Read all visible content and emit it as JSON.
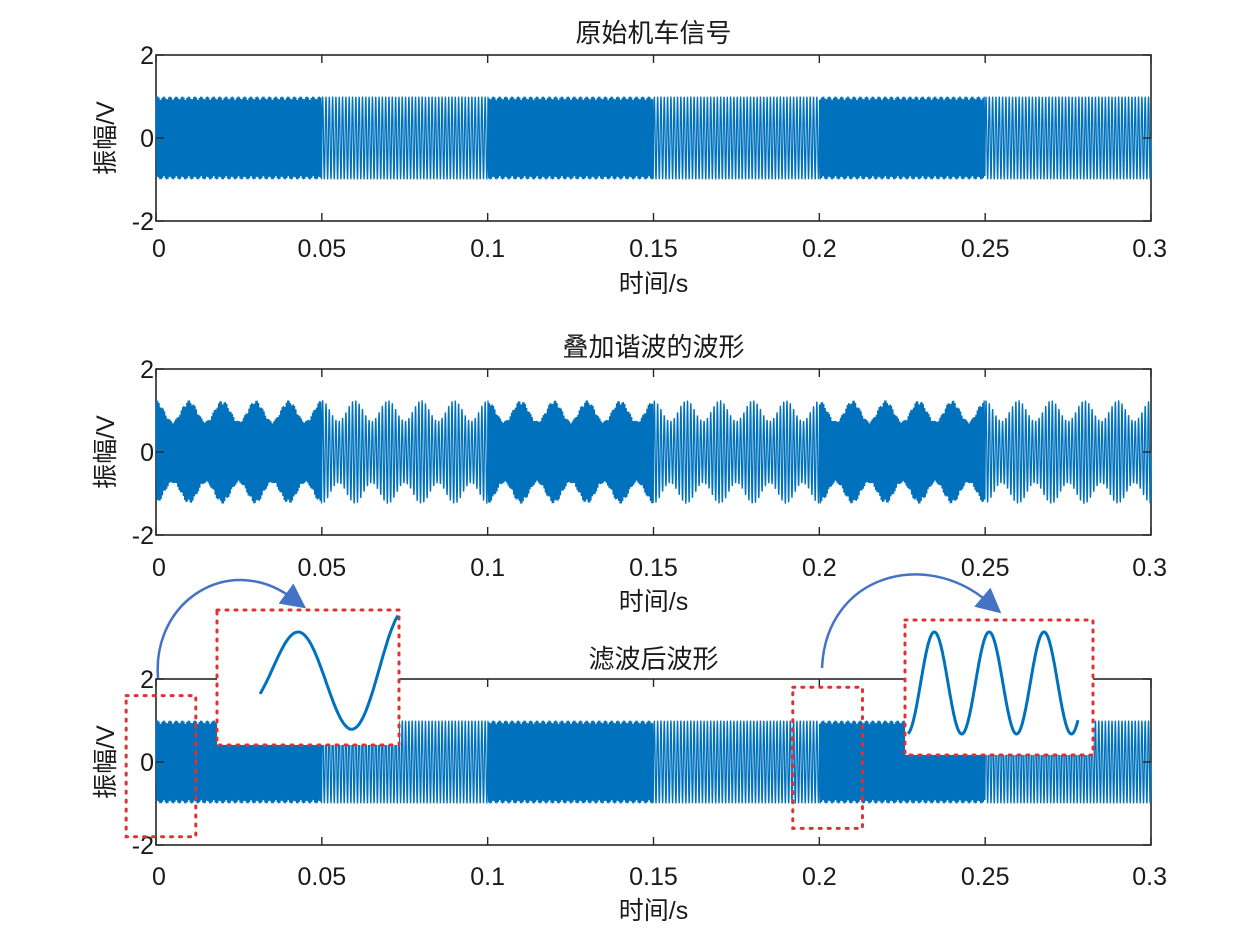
{
  "colors": {
    "signal": "#0072BD",
    "zoom_box": "#e03030",
    "arrow": "#4472C4",
    "axis": "#262626"
  },
  "chart_data": [
    {
      "type": "line",
      "title": "原始机车信号",
      "xlabel": "时间/s",
      "ylabel": "振幅/V",
      "xlim": [
        0,
        0.3
      ],
      "ylim": [
        -2,
        2
      ],
      "xticks": [
        "0",
        "0.05",
        "0.1",
        "0.15",
        "0.2",
        "0.25",
        "0.3"
      ],
      "yticks": [
        "-2",
        "0",
        "2"
      ],
      "grid": false,
      "series": [
        {
          "kind": "fsk",
          "amplitude": 1.0,
          "segments": [
            {
              "x": [
                0,
                0.05
              ],
              "freq_hz": 2400
            },
            {
              "x": [
                0.05,
                0.1
              ],
              "freq_hz": 1000
            },
            {
              "x": [
                0.1,
                0.15
              ],
              "freq_hz": 2400
            },
            {
              "x": [
                0.15,
                0.2
              ],
              "freq_hz": 1000
            },
            {
              "x": [
                0.2,
                0.25
              ],
              "freq_hz": 2400
            },
            {
              "x": [
                0.25,
                0.3
              ],
              "freq_hz": 1000
            }
          ]
        }
      ]
    },
    {
      "type": "line",
      "title": "叠加谐波的波形",
      "xlabel": "时间/s",
      "ylabel": "振幅/V",
      "xlim": [
        0,
        0.3
      ],
      "ylim": [
        -2,
        2
      ],
      "xticks": [
        "0",
        "0.05",
        "0.1",
        "0.15",
        "0.2",
        "0.25",
        "0.3"
      ],
      "yticks": [
        "-2",
        "0",
        "2"
      ],
      "grid": false,
      "series": [
        {
          "kind": "fsk_with_harmonic",
          "amplitude": 1.0,
          "harmonic_amplitude": 0.25,
          "segments": [
            {
              "x": [
                0,
                0.05
              ],
              "freq_hz": 2400
            },
            {
              "x": [
                0.05,
                0.1
              ],
              "freq_hz": 1000
            },
            {
              "x": [
                0.1,
                0.15
              ],
              "freq_hz": 2400
            },
            {
              "x": [
                0.15,
                0.2
              ],
              "freq_hz": 1000
            },
            {
              "x": [
                0.2,
                0.25
              ],
              "freq_hz": 2400
            },
            {
              "x": [
                0.25,
                0.3
              ],
              "freq_hz": 1000
            }
          ]
        }
      ]
    },
    {
      "type": "line",
      "title": "滤波后波形",
      "xlabel": "时间/s",
      "ylabel": "振幅/V",
      "xlim": [
        0,
        0.3
      ],
      "ylim": [
        -2,
        2
      ],
      "xticks": [
        "0",
        "0.05",
        "0.1",
        "0.15",
        "0.2",
        "0.25",
        "0.3"
      ],
      "yticks": [
        "-2",
        "0",
        "2"
      ],
      "grid": false,
      "series": [
        {
          "kind": "fsk",
          "amplitude": 1.0,
          "segments": [
            {
              "x": [
                0,
                0.05
              ],
              "freq_hz": 2400
            },
            {
              "x": [
                0.05,
                0.1
              ],
              "freq_hz": 1000
            },
            {
              "x": [
                0.1,
                0.15
              ],
              "freq_hz": 2400
            },
            {
              "x": [
                0.15,
                0.2
              ],
              "freq_hz": 1000
            },
            {
              "x": [
                0.2,
                0.25
              ],
              "freq_hz": 2400
            },
            {
              "x": [
                0.25,
                0.3
              ],
              "freq_hz": 1000
            }
          ]
        }
      ],
      "annotations": [
        {
          "type": "zoom_inset",
          "source_x": [
            -0.009,
            0.012
          ],
          "source_y": [
            -1.8,
            1.6
          ],
          "content": "start transient: half swing then one full cycle"
        },
        {
          "type": "zoom_inset",
          "source_x": [
            0.192,
            0.213
          ],
          "source_y": [
            -1.6,
            1.8
          ],
          "content": "three cycles at segment boundary"
        }
      ]
    }
  ]
}
